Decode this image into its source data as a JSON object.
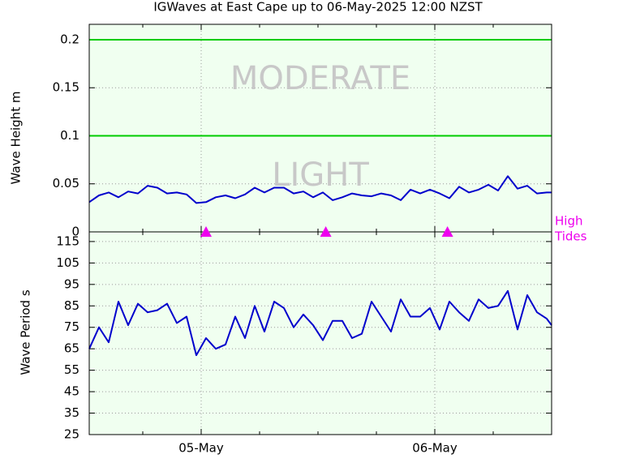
{
  "chart_data": [
    {
      "type": "line",
      "title": "IGWaves at East Cape up to 06-May-2025 12:00 NZST",
      "y_label": "Wave Height m",
      "x": [
        -11.5,
        -10.5,
        -9.5,
        -8.5,
        -7.5,
        -6.5,
        -5.5,
        -4.5,
        -3.5,
        -2.5,
        -1.5,
        -0.5,
        0.5,
        1.5,
        2.5,
        3.5,
        4.5,
        5.5,
        6.5,
        7.5,
        8.5,
        9.5,
        10.5,
        11.5,
        12.5,
        13.5,
        14.5,
        15.5,
        16.5,
        17.5,
        18.5,
        19.5,
        20.5,
        21.5,
        22.5,
        23.5,
        24.5,
        25.5,
        26.5,
        27.5,
        28.5,
        29.5,
        30.5,
        31.5,
        32.5,
        33.5,
        34.5,
        35.5,
        36
      ],
      "values": [
        0.031,
        0.038,
        0.041,
        0.036,
        0.042,
        0.04,
        0.048,
        0.046,
        0.04,
        0.041,
        0.039,
        0.03,
        0.031,
        0.036,
        0.038,
        0.035,
        0.039,
        0.046,
        0.041,
        0.046,
        0.046,
        0.04,
        0.042,
        0.036,
        0.041,
        0.033,
        0.036,
        0.04,
        0.038,
        0.037,
        0.04,
        0.038,
        0.033,
        0.044,
        0.04,
        0.044,
        0.04,
        0.035,
        0.047,
        0.041,
        0.044,
        0.049,
        0.043,
        0.058,
        0.045,
        0.048,
        0.04,
        0.041,
        0.041
      ],
      "color": "#0000cc",
      "xlim": [
        -11.5,
        36
      ],
      "ylim": [
        0,
        0.216
      ],
      "yticks": [
        0,
        0.05,
        0.1,
        0.15,
        0.2
      ],
      "thresholds": [
        {
          "value": 0.1,
          "color": "#00cc00"
        },
        {
          "value": 0.2,
          "color": "#00cc00"
        }
      ],
      "annotations": [
        "MODERATE",
        "LIGHT"
      ],
      "high_tides": {
        "label": [
          "High",
          "Tides"
        ],
        "x": [
          0.5,
          12.8,
          25.3
        ],
        "color": "#ee00ee"
      },
      "grid": true
    },
    {
      "type": "line",
      "y_label": "Wave Period s",
      "x": [
        -11.5,
        -10.5,
        -9.5,
        -8.5,
        -7.5,
        -6.5,
        -5.5,
        -4.5,
        -3.5,
        -2.5,
        -1.5,
        -0.5,
        0.5,
        1.5,
        2.5,
        3.5,
        4.5,
        5.5,
        6.5,
        7.5,
        8.5,
        9.5,
        10.5,
        11.5,
        12.5,
        13.5,
        14.5,
        15.5,
        16.5,
        17.5,
        18.5,
        19.5,
        20.5,
        21.5,
        22.5,
        23.5,
        24.5,
        25.5,
        26.5,
        27.5,
        28.5,
        29.5,
        30.5,
        31.5,
        32.5,
        33.5,
        34.5,
        35.5,
        36
      ],
      "values": [
        65,
        75,
        68,
        87,
        76,
        86,
        82,
        83,
        86,
        77,
        80,
        62,
        70,
        65,
        67,
        80,
        70,
        85,
        73,
        87,
        84,
        75,
        81,
        76,
        69,
        78,
        78,
        70,
        72,
        87,
        80,
        73,
        88,
        80,
        80,
        84,
        74,
        87,
        82,
        78,
        88,
        84,
        85,
        92,
        74,
        90,
        82,
        79,
        76
      ],
      "color": "#0000cc",
      "xlim": [
        -11.5,
        36
      ],
      "xticks": [
        {
          "value": 0,
          "label": "05-May"
        },
        {
          "value": 24,
          "label": "06-May"
        }
      ],
      "xminor": [
        -6,
        6,
        12,
        18,
        30
      ],
      "ylim": [
        25,
        119.5
      ],
      "yticks": [
        25,
        35,
        45,
        55,
        65,
        75,
        85,
        95,
        105,
        115
      ],
      "grid": true
    }
  ]
}
